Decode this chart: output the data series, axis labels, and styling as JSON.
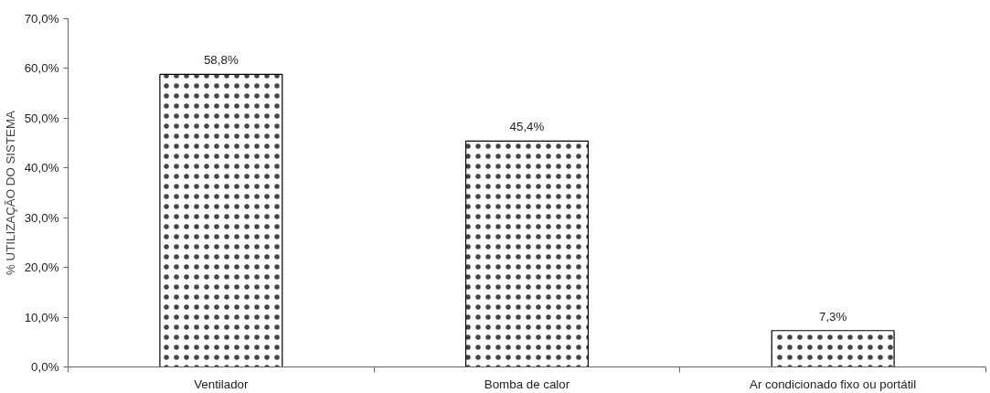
{
  "chart_data": {
    "type": "bar",
    "ylabel": "% UTILIZAÇÃO DO SISTEMA",
    "categories": [
      "Ventilador",
      "Bomba de calor",
      "Ar condicionado fixo ou portátil"
    ],
    "values": [
      58.8,
      45.4,
      7.3
    ],
    "color": "#ffffff",
    "value_labels": [
      "58,8%",
      "45,4%",
      "7,3%"
    ],
    "ylim": [
      0,
      70
    ],
    "yticks": [
      {
        "value": 0,
        "label": "0,0%"
      },
      {
        "value": 10,
        "label": "10,0%"
      },
      {
        "value": 20,
        "label": "20,0%"
      },
      {
        "value": 30,
        "label": "30,0%"
      },
      {
        "value": 40,
        "label": "40,0%"
      },
      {
        "value": 50,
        "label": "50,0%"
      },
      {
        "value": 60,
        "label": "60,0%"
      },
      {
        "value": 70,
        "label": "70,0%"
      }
    ],
    "grid": false
  }
}
